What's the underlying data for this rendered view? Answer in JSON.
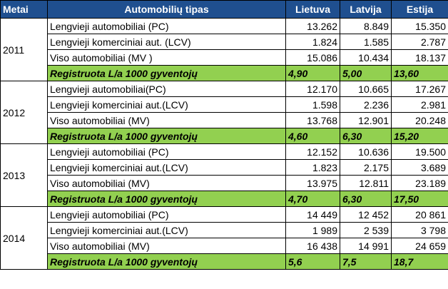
{
  "header": {
    "year": "Metai",
    "type": "Automobilių tipas",
    "lt": "Lietuva",
    "lv": "Latvija",
    "ee": "Estija"
  },
  "colors": {
    "header_bg": "#1f4f8f",
    "highlight_bg": "#92d050"
  },
  "blocks": [
    {
      "year": "2011",
      "rows": [
        {
          "type": "Lengvieji automobiliai (PC)",
          "lt": "13.262",
          "lv": "8.849",
          "ee": "15.350"
        },
        {
          "type": "Lengvieji komerciniai aut. (LCV)",
          "lt": "1.824",
          "lv": "1.585",
          "ee": "2.787"
        },
        {
          "type": "Viso automobiliai (MV )",
          "lt": "15.086",
          "lv": "10.434",
          "ee": "18.137"
        },
        {
          "type": "Registruota L/a 1000 gyventojų",
          "lt": "4,90",
          "lv": "5,00",
          "ee": "13,60"
        }
      ]
    },
    {
      "year": "2012",
      "rows": [
        {
          "type": "Lengvieji automobiliai(PC)",
          "lt": "12.170",
          "lv": "10.665",
          "ee": "17.267"
        },
        {
          "type": "Lengvieji komerciniai aut.(LCV)",
          "lt": "1.598",
          "lv": "2.236",
          "ee": "2.981"
        },
        {
          "type": "Viso automobiliai (MV)",
          "lt": "13.768",
          "lv": "12.901",
          "ee": "20.248"
        },
        {
          "type": "Registruota L/a 1000 gyventojų",
          "lt": "4,60",
          "lv": "6,30",
          "ee": "15,20"
        }
      ]
    },
    {
      "year": "2013",
      "rows": [
        {
          "type": "Lengvieji automobiliai (PC)",
          "lt": "12.152",
          "lv": "10.636",
          "ee": "19.500"
        },
        {
          "type": "Lengvieji komerciniai aut.(LCV)",
          "lt": "1.823",
          "lv": "2.175",
          "ee": "3.689"
        },
        {
          "type": "Viso automobiliai (MV)",
          "lt": "13.975",
          "lv": "12.811",
          "ee": "23.189"
        },
        {
          "type": "Registruota L/a 1000 gyventojų",
          "lt": "4,70",
          "lv": "6,30",
          "ee": "17,50"
        }
      ]
    },
    {
      "year": "2014",
      "rows": [
        {
          "type": "Lengvieji automobiliai (PC)",
          "lt": "14 449",
          "lv": "12 452",
          "ee": "20 861"
        },
        {
          "type": "Lengvieji komerciniai aut.(LCV)",
          "lt": "1 989",
          "lv": "2 539",
          "ee": "3 798"
        },
        {
          "type": "Viso automobiliai (MV)",
          "lt": "16 438",
          "lv": "14 991",
          "ee": "24 659"
        },
        {
          "type": "Registruota L/a 1000 gyventojų",
          "lt": "5,6",
          "lv": "7,5",
          "ee": "18,7"
        }
      ]
    }
  ]
}
